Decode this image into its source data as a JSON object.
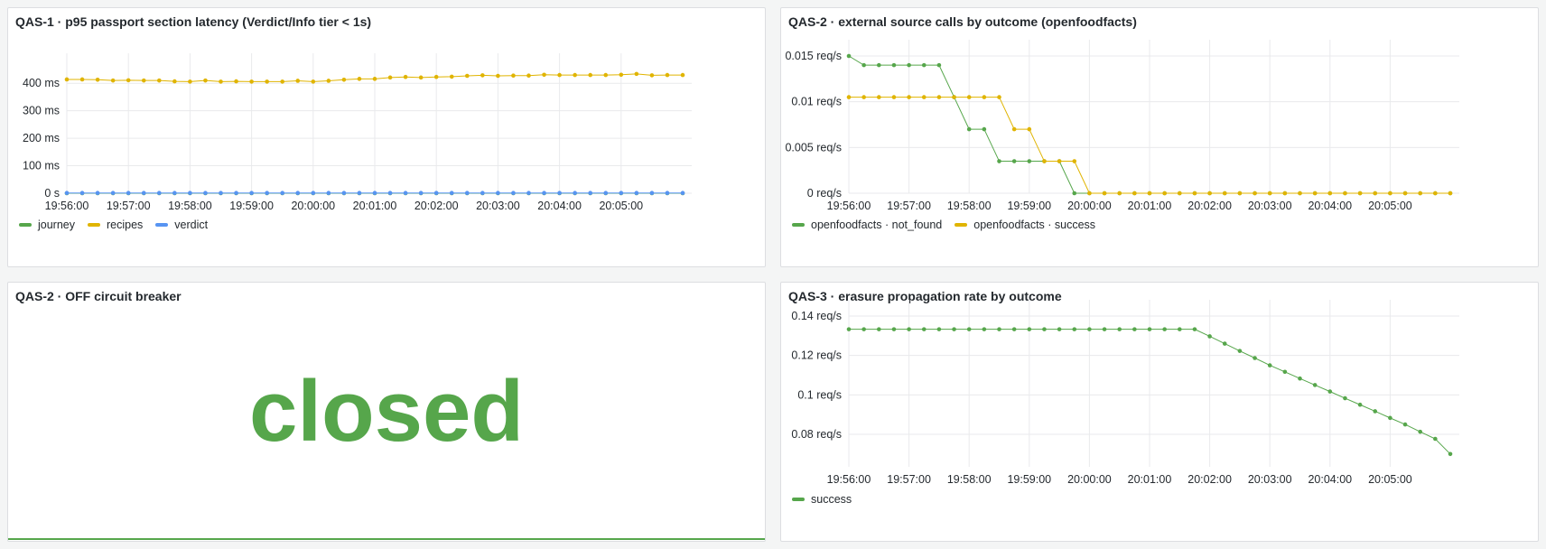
{
  "panels": [
    {
      "title": "QAS-1 · p95 passport section latency (Verdict/Info tier < 1s)",
      "legend": [
        {
          "name": "journey",
          "color": "#56a64b"
        },
        {
          "name": "recipes",
          "color": "#e0b400"
        },
        {
          "name": "verdict",
          "color": "#5794f2"
        }
      ]
    },
    {
      "title": "QAS-2 · external source calls by outcome (openfoodfacts)",
      "legend": [
        {
          "name": "openfoodfacts · not_found",
          "color": "#56a64b"
        },
        {
          "name": "openfoodfacts · success",
          "color": "#e0b400"
        }
      ]
    },
    {
      "title": "QAS-2 · OFF circuit breaker",
      "stat": {
        "value": "closed",
        "color": "#56a64b"
      }
    },
    {
      "title": "QAS-3 · erasure propagation rate by outcome",
      "legend": [
        {
          "name": "success",
          "color": "#56a64b"
        }
      ]
    }
  ],
  "chart_data": [
    {
      "type": "line",
      "title": "QAS-1 · p95 passport section latency (Verdict/Info tier < 1s)",
      "x_ticks": [
        "19:56:00",
        "19:57:00",
        "19:58:00",
        "19:59:00",
        "20:00:00",
        "20:01:00",
        "20:02:00",
        "20:03:00",
        "20:04:00",
        "20:05:00"
      ],
      "y_ticks": [
        "0 s",
        "100 ms",
        "200 ms",
        "300 ms",
        "400 ms"
      ],
      "ylim": [
        0,
        450
      ],
      "grid": true,
      "legend_position": "bottom-left",
      "series": [
        {
          "name": "journey",
          "color": "#56a64b",
          "values": [
            0,
            0,
            0,
            0,
            0,
            0,
            0,
            0,
            0,
            0,
            0,
            0,
            0,
            0,
            0,
            0,
            0,
            0,
            0,
            0,
            0,
            0,
            0,
            0,
            0,
            0,
            0,
            0,
            0,
            0,
            0,
            0,
            0,
            0,
            0,
            0,
            0,
            0,
            0,
            0,
            0
          ]
        },
        {
          "name": "recipes",
          "color": "#e0b400",
          "values": [
            414,
            414,
            413,
            410,
            411,
            410,
            410,
            407,
            406,
            410,
            406,
            407,
            406,
            406,
            406,
            409,
            406,
            409,
            413,
            416,
            416,
            421,
            423,
            421,
            423,
            424,
            427,
            429,
            427,
            428,
            428,
            431,
            430,
            430,
            430,
            430,
            431,
            434,
            429,
            430,
            430
          ]
        },
        {
          "name": "verdict",
          "color": "#5794f2",
          "values": [
            1,
            1,
            1,
            1,
            1,
            1,
            1,
            1,
            1,
            1,
            1,
            1,
            1,
            1,
            1,
            1,
            1,
            1,
            1,
            1,
            1,
            1,
            1,
            1,
            1,
            1,
            1,
            1,
            1,
            1,
            1,
            1,
            1,
            1,
            1,
            1,
            1,
            1,
            1,
            1,
            1
          ]
        }
      ]
    },
    {
      "type": "line",
      "title": "QAS-2 · external source calls by outcome (openfoodfacts)",
      "x_ticks": [
        "19:56:00",
        "19:57:00",
        "19:58:00",
        "19:59:00",
        "20:00:00",
        "20:01:00",
        "20:02:00",
        "20:03:00",
        "20:04:00",
        "20:05:00"
      ],
      "y_ticks": [
        "0 req/s",
        "0.005 req/s",
        "0.01 req/s",
        "0.015 req/s"
      ],
      "ylim": [
        0,
        0.015
      ],
      "grid": true,
      "legend_position": "bottom-left",
      "series": [
        {
          "name": "openfoodfacts · not_found",
          "color": "#56a64b",
          "values": [
            0.015,
            0.014,
            0.014,
            0.014,
            0.014,
            0.014,
            0.014,
            0.0105,
            0.007,
            0.007,
            0.0035,
            0.0035,
            0.0035,
            0.0035,
            0.0035,
            0,
            0,
            0,
            0,
            0,
            0,
            0,
            0,
            0,
            0,
            0,
            0,
            0,
            0,
            0,
            0,
            0,
            0,
            0,
            0,
            0,
            0,
            0,
            0,
            0,
            0
          ]
        },
        {
          "name": "openfoodfacts · success",
          "color": "#e0b400",
          "values": [
            0.0105,
            0.0105,
            0.0105,
            0.0105,
            0.0105,
            0.0105,
            0.0105,
            0.0105,
            0.0105,
            0.0105,
            0.0105,
            0.007,
            0.007,
            0.0035,
            0.0035,
            0.0035,
            0,
            0,
            0,
            0,
            0,
            0,
            0,
            0,
            0,
            0,
            0,
            0,
            0,
            0,
            0,
            0,
            0,
            0,
            0,
            0,
            0,
            0,
            0,
            0,
            0
          ]
        }
      ]
    },
    {
      "type": "line",
      "title": "QAS-3 · erasure propagation rate by outcome",
      "x_ticks": [
        "19:56:00",
        "19:57:00",
        "19:58:00",
        "19:59:00",
        "20:00:00",
        "20:01:00",
        "20:02:00",
        "20:03:00",
        "20:04:00",
        "20:05:00"
      ],
      "y_ticks": [
        "0.08 req/s",
        "0.1 req/s",
        "0.12 req/s",
        "0.14 req/s"
      ],
      "ylim": [
        0.0635,
        0.14
      ],
      "grid": true,
      "legend_position": "bottom-left",
      "series": [
        {
          "name": "success",
          "color": "#56a64b",
          "values": [
            0.1333,
            0.1333,
            0.1333,
            0.1333,
            0.1333,
            0.1333,
            0.1333,
            0.1333,
            0.1333,
            0.1333,
            0.1333,
            0.1333,
            0.1333,
            0.1333,
            0.1333,
            0.1333,
            0.1333,
            0.1333,
            0.1333,
            0.1333,
            0.1333,
            0.1333,
            0.1333,
            0.1333,
            0.1297,
            0.126,
            0.1223,
            0.1187,
            0.115,
            0.1117,
            0.1083,
            0.105,
            0.1017,
            0.0983,
            0.095,
            0.0917,
            0.0883,
            0.085,
            0.0813,
            0.0777,
            0.07
          ]
        }
      ]
    }
  ]
}
